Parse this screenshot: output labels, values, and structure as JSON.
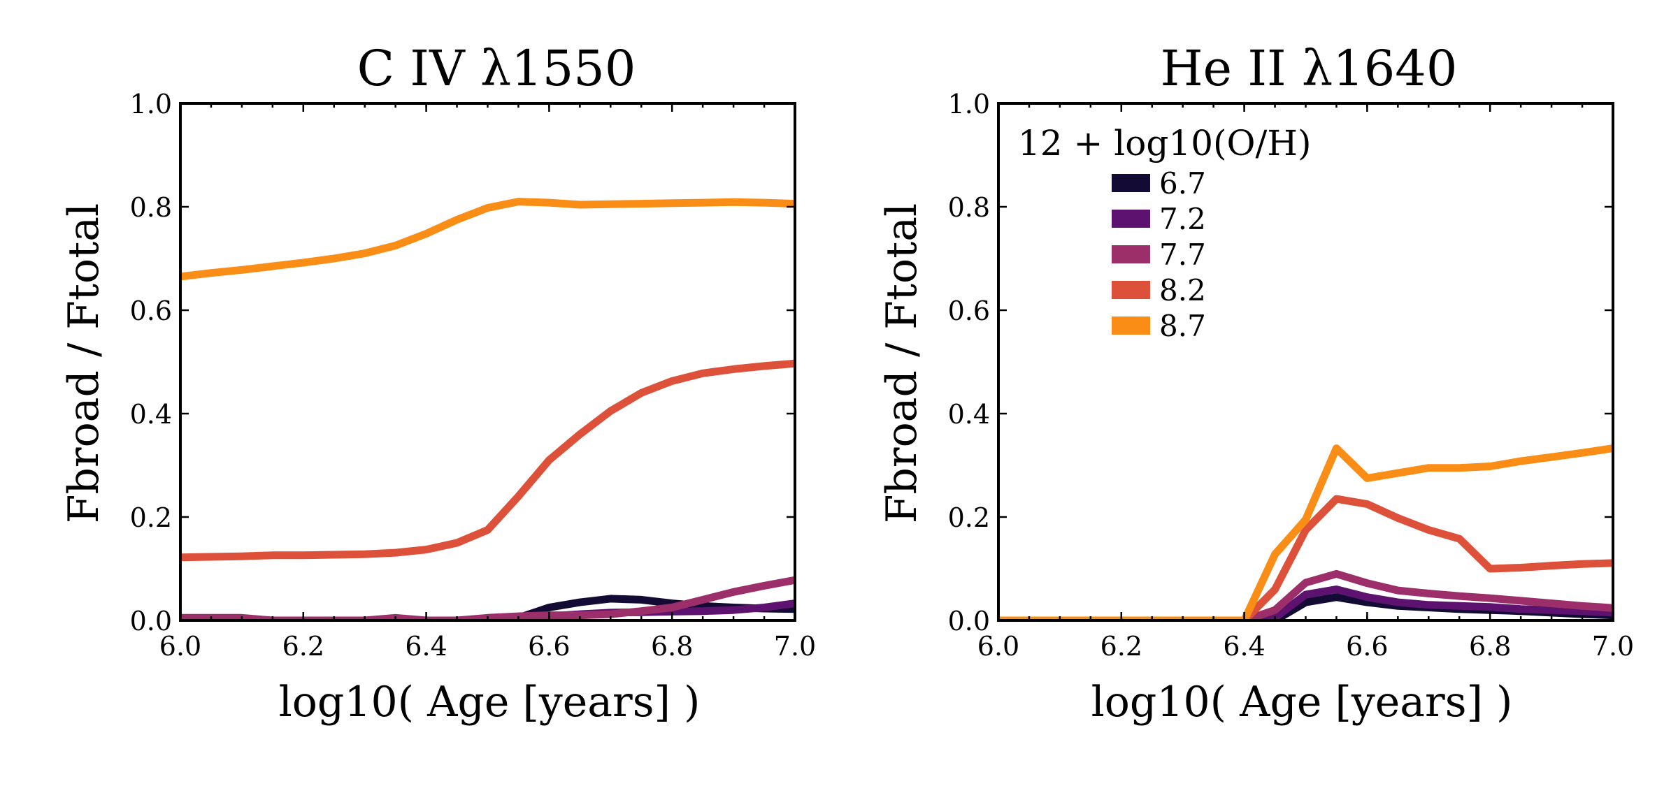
{
  "figure": {
    "colors": {
      "6.7": "#140b34",
      "7.2": "#5c126e",
      "7.7": "#9c2e6a",
      "8.2": "#dd513a",
      "8.7": "#fa8d15"
    }
  },
  "chart_data": [
    {
      "type": "line",
      "title": "C IV λ1550",
      "xlabel": "log10( Age [years] )",
      "ylabel": "Fbroad / Ftotal",
      "xlim": [
        6.0,
        7.0
      ],
      "ylim": [
        0.0,
        1.0
      ],
      "xticks": [
        "6.0",
        "6.2",
        "6.4",
        "6.6",
        "6.8",
        "7.0"
      ],
      "yticks": [
        "0.0",
        "0.2",
        "0.4",
        "0.6",
        "0.8",
        "1.0"
      ],
      "series": [
        {
          "key": "6.7",
          "x": [
            6.0,
            6.05,
            6.1,
            6.15,
            6.2,
            6.25,
            6.3,
            6.35,
            6.4,
            6.45,
            6.5,
            6.55,
            6.6,
            6.65,
            6.7,
            6.75,
            6.8,
            6.85,
            6.9,
            6.95,
            7.0
          ],
          "y": [
            0,
            0,
            0,
            0,
            0,
            0,
            0,
            0,
            0,
            0,
            0,
            0.005,
            0.025,
            0.035,
            0.042,
            0.04,
            0.033,
            0.028,
            0.025,
            0.023,
            0.022
          ]
        },
        {
          "key": "7.2",
          "x": [
            6.0,
            6.05,
            6.1,
            6.15,
            6.2,
            6.25,
            6.3,
            6.35,
            6.4,
            6.45,
            6.5,
            6.55,
            6.6,
            6.65,
            6.7,
            6.75,
            6.8,
            6.85,
            6.9,
            6.95,
            7.0
          ],
          "y": [
            0,
            0,
            0,
            0,
            0,
            0,
            0,
            0,
            0,
            0,
            0,
            0.003,
            0.008,
            0.012,
            0.015,
            0.016,
            0.017,
            0.018,
            0.02,
            0.025,
            0.033
          ]
        },
        {
          "key": "7.7",
          "x": [
            6.0,
            6.05,
            6.1,
            6.15,
            6.2,
            6.25,
            6.3,
            6.35,
            6.4,
            6.45,
            6.5,
            6.55,
            6.6,
            6.65,
            6.7,
            6.75,
            6.8,
            6.85,
            6.9,
            6.95,
            7.0
          ],
          "y": [
            0.005,
            0.005,
            0.005,
            0,
            0,
            0,
            0,
            0.005,
            0,
            0,
            0.005,
            0.008,
            0.01,
            0.01,
            0.012,
            0.018,
            0.025,
            0.04,
            0.055,
            0.067,
            0.078
          ]
        },
        {
          "key": "8.2",
          "x": [
            6.0,
            6.05,
            6.1,
            6.15,
            6.2,
            6.25,
            6.3,
            6.35,
            6.4,
            6.45,
            6.5,
            6.55,
            6.6,
            6.65,
            6.7,
            6.75,
            6.8,
            6.85,
            6.9,
            6.95,
            7.0
          ],
          "y": [
            0.122,
            0.123,
            0.124,
            0.126,
            0.126,
            0.127,
            0.128,
            0.131,
            0.137,
            0.15,
            0.175,
            0.24,
            0.31,
            0.36,
            0.405,
            0.44,
            0.463,
            0.478,
            0.486,
            0.492,
            0.497
          ]
        },
        {
          "key": "8.7",
          "x": [
            6.0,
            6.05,
            6.1,
            6.15,
            6.2,
            6.25,
            6.3,
            6.35,
            6.4,
            6.45,
            6.5,
            6.55,
            6.6,
            6.65,
            6.7,
            6.75,
            6.8,
            6.85,
            6.9,
            6.95,
            7.0
          ],
          "y": [
            0.665,
            0.672,
            0.678,
            0.685,
            0.692,
            0.7,
            0.71,
            0.725,
            0.748,
            0.775,
            0.798,
            0.81,
            0.808,
            0.804,
            0.805,
            0.806,
            0.807,
            0.808,
            0.809,
            0.808,
            0.806
          ]
        }
      ]
    },
    {
      "type": "line",
      "title": "He II λ1640",
      "xlabel": "log10( Age [years] )",
      "ylabel": "Fbroad / Ftotal",
      "xlim": [
        6.0,
        7.0
      ],
      "ylim": [
        0.0,
        1.0
      ],
      "xticks": [
        "6.0",
        "6.2",
        "6.4",
        "6.6",
        "6.8",
        "7.0"
      ],
      "yticks": [
        "0.0",
        "0.2",
        "0.4",
        "0.6",
        "0.8",
        "1.0"
      ],
      "legend": {
        "title": "12 + log10(O/H)",
        "position": "upper-left",
        "entries": [
          "6.7",
          "7.2",
          "7.7",
          "8.2",
          "8.7"
        ]
      },
      "series": [
        {
          "key": "6.7",
          "x": [
            6.0,
            6.4,
            6.45,
            6.5,
            6.55,
            6.6,
            6.65,
            6.7,
            6.75,
            6.8,
            6.85,
            6.9,
            6.95,
            7.0
          ],
          "y": [
            0,
            0,
            0,
            0.035,
            0.045,
            0.035,
            0.028,
            0.025,
            0.022,
            0.02,
            0.018,
            0.015,
            0.012,
            0.01
          ]
        },
        {
          "key": "7.2",
          "x": [
            6.0,
            6.4,
            6.45,
            6.5,
            6.55,
            6.6,
            6.65,
            6.7,
            6.75,
            6.8,
            6.85,
            6.9,
            6.95,
            7.0
          ],
          "y": [
            0,
            0,
            0.005,
            0.05,
            0.06,
            0.045,
            0.035,
            0.03,
            0.028,
            0.026,
            0.022,
            0.02,
            0.018,
            0.015
          ]
        },
        {
          "key": "7.7",
          "x": [
            6.0,
            6.4,
            6.45,
            6.5,
            6.55,
            6.6,
            6.65,
            6.7,
            6.75,
            6.8,
            6.85,
            6.9,
            6.95,
            7.0
          ],
          "y": [
            0,
            0,
            0.02,
            0.073,
            0.09,
            0.072,
            0.058,
            0.052,
            0.047,
            0.043,
            0.038,
            0.033,
            0.028,
            0.024
          ]
        },
        {
          "key": "8.2",
          "x": [
            6.0,
            6.4,
            6.45,
            6.5,
            6.55,
            6.6,
            6.65,
            6.7,
            6.75,
            6.8,
            6.85,
            6.9,
            6.95,
            7.0
          ],
          "y": [
            0,
            0,
            0.06,
            0.175,
            0.235,
            0.225,
            0.198,
            0.175,
            0.158,
            0.1,
            0.102,
            0.106,
            0.109,
            0.111
          ]
        },
        {
          "key": "8.7",
          "x": [
            6.0,
            6.4,
            6.45,
            6.5,
            6.55,
            6.6,
            6.65,
            6.7,
            6.75,
            6.8,
            6.85,
            6.9,
            6.95,
            7.0
          ],
          "y": [
            0,
            0,
            0.128,
            0.195,
            0.333,
            0.275,
            0.285,
            0.295,
            0.295,
            0.298,
            0.308,
            0.316,
            0.324,
            0.333
          ]
        }
      ]
    }
  ]
}
